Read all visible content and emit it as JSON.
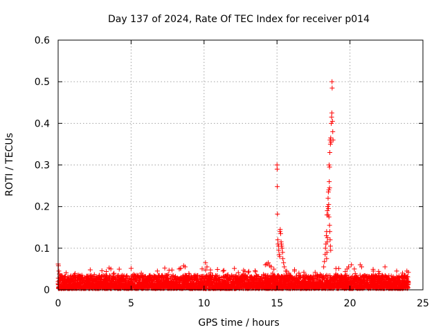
{
  "chart_data": {
    "type": "scatter",
    "title": "Day 137 of 2024, Rate Of TEC Index for receiver p014",
    "xlabel": "GPS time / hours",
    "ylabel": "ROTI / TECUs",
    "xlim": [
      0,
      25
    ],
    "ylim": [
      0,
      0.6
    ],
    "xticks": [
      0,
      5,
      10,
      15,
      20,
      25
    ],
    "yticks": [
      0,
      0.1,
      0.2,
      0.3,
      0.4,
      0.5,
      0.6
    ],
    "xtick_labels": [
      "0",
      "5",
      "10",
      "15",
      "20",
      "25"
    ],
    "ytick_labels": [
      "0",
      "0.1",
      "0.2",
      "0.3",
      "0.4",
      "0.5",
      "0.6"
    ],
    "grid": true,
    "marker": "+",
    "color": "#ff0000",
    "baseline": {
      "x_range": [
        0,
        24
      ],
      "typical_min": 0.003,
      "typical_max": 0.035,
      "occasional_max": 0.065
    },
    "series": [
      {
        "name": "ROTI",
        "points": [
          [
            0.0,
            0.062
          ],
          [
            0.02,
            0.058
          ],
          [
            0.05,
            0.045
          ],
          [
            0.08,
            0.038
          ],
          [
            2.2,
            0.048
          ],
          [
            3.0,
            0.046
          ],
          [
            3.3,
            0.044
          ],
          [
            5.7,
            0.04
          ],
          [
            6.8,
            0.045
          ],
          [
            7.6,
            0.047
          ],
          [
            8.3,
            0.05
          ],
          [
            8.6,
            0.058
          ],
          [
            8.7,
            0.055
          ],
          [
            10.1,
            0.065
          ],
          [
            10.2,
            0.055
          ],
          [
            11.3,
            0.045
          ],
          [
            12.8,
            0.044
          ],
          [
            13.5,
            0.046
          ],
          [
            14.2,
            0.06
          ],
          [
            14.3,
            0.062
          ],
          [
            14.4,
            0.065
          ],
          [
            14.5,
            0.058
          ],
          [
            14.6,
            0.055
          ],
          [
            14.7,
            0.04
          ],
          [
            15.0,
            0.3
          ],
          [
            15.01,
            0.29
          ],
          [
            15.02,
            0.248
          ],
          [
            15.03,
            0.182
          ],
          [
            15.05,
            0.12
          ],
          [
            15.07,
            0.11
          ],
          [
            15.1,
            0.105
          ],
          [
            15.12,
            0.095
          ],
          [
            15.15,
            0.085
          ],
          [
            15.18,
            0.08
          ],
          [
            15.2,
            0.14
          ],
          [
            15.22,
            0.145
          ],
          [
            15.25,
            0.135
          ],
          [
            15.28,
            0.115
          ],
          [
            15.3,
            0.11
          ],
          [
            15.32,
            0.105
          ],
          [
            15.35,
            0.1
          ],
          [
            15.38,
            0.09
          ],
          [
            15.4,
            0.075
          ],
          [
            15.45,
            0.065
          ],
          [
            15.5,
            0.055
          ],
          [
            15.6,
            0.045
          ],
          [
            15.8,
            0.04
          ],
          [
            16.2,
            0.045
          ],
          [
            16.5,
            0.04
          ],
          [
            18.2,
            0.055
          ],
          [
            18.25,
            0.068
          ],
          [
            18.3,
            0.085
          ],
          [
            18.32,
            0.1
          ],
          [
            18.35,
            0.11
          ],
          [
            18.38,
            0.13
          ],
          [
            18.4,
            0.14
          ],
          [
            18.42,
            0.18
          ],
          [
            18.45,
            0.19
          ],
          [
            18.47,
            0.2
          ],
          [
            18.5,
            0.22
          ],
          [
            18.52,
            0.235
          ],
          [
            18.55,
            0.24
          ],
          [
            18.57,
            0.3
          ],
          [
            18.6,
            0.295
          ],
          [
            18.62,
            0.33
          ],
          [
            18.64,
            0.36
          ],
          [
            18.66,
            0.35
          ],
          [
            18.68,
            0.365
          ],
          [
            18.7,
            0.355
          ],
          [
            18.72,
            0.4
          ],
          [
            18.74,
            0.415
          ],
          [
            18.76,
            0.425
          ],
          [
            18.77,
            0.5
          ],
          [
            18.78,
            0.485
          ],
          [
            18.8,
            0.405
          ],
          [
            18.82,
            0.38
          ],
          [
            18.84,
            0.36
          ],
          [
            18.6,
            0.155
          ],
          [
            18.62,
            0.14
          ],
          [
            18.64,
            0.12
          ],
          [
            18.66,
            0.105
          ],
          [
            18.68,
            0.095
          ],
          [
            18.58,
            0.26
          ],
          [
            18.6,
            0.245
          ],
          [
            18.56,
            0.175
          ],
          [
            18.54,
            0.205
          ],
          [
            18.52,
            0.195
          ],
          [
            18.5,
            0.18
          ],
          [
            18.46,
            0.125
          ],
          [
            18.44,
            0.115
          ],
          [
            18.42,
            0.09
          ],
          [
            18.4,
            0.075
          ],
          [
            19.8,
            0.05
          ],
          [
            19.9,
            0.055
          ],
          [
            20.1,
            0.06
          ],
          [
            20.3,
            0.05
          ],
          [
            20.7,
            0.06
          ],
          [
            20.8,
            0.055
          ],
          [
            21.6,
            0.045
          ],
          [
            22.4,
            0.055
          ],
          [
            23.2,
            0.045
          ],
          [
            23.6,
            0.04
          ],
          [
            23.9,
            0.045
          ],
          [
            24.0,
            0.042
          ]
        ]
      }
    ]
  }
}
